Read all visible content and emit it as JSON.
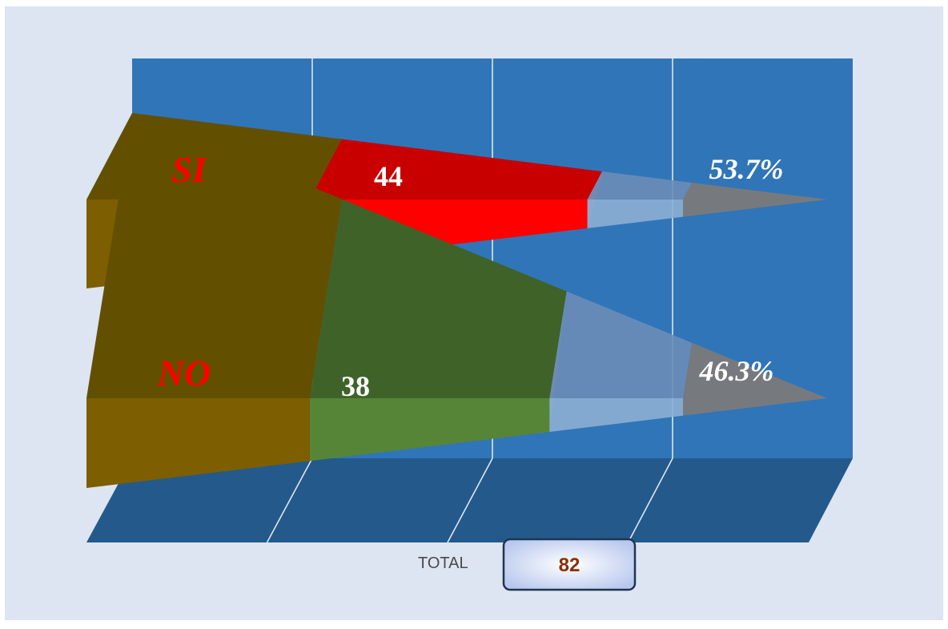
{
  "chart_data": {
    "type": "bar",
    "orientation": "horizontal-3d-cone",
    "categories": [
      "SI",
      "NO"
    ],
    "values": [
      44,
      38
    ],
    "percentages": [
      "53.7%",
      "46.3%"
    ],
    "total": 82,
    "max": 82
  },
  "total_label": "TOTAL",
  "colors": {
    "page_bg": "#dde5f3",
    "back_wall": "#3075b8",
    "floor": "#235a8b",
    "gridline": "#dce6f2",
    "cat_label": "#ff0000",
    "cat_front": "#7d5e00",
    "cat_top": "#625000",
    "value_label": "#ffffff",
    "pct_label": "#ffffff",
    "remaining_front": "#8dafd3",
    "remaining_top": "#6b8db7",
    "tip": "#7a7a7a",
    "total_label": "#4a4a4a",
    "total_value": "#8b2f00",
    "total_box_border": "#1f3550",
    "series": [
      {
        "front": "#ff0000",
        "top": "#c80000",
        "side": "#e06a6a"
      },
      {
        "front": "#578537",
        "top": "#3f6229",
        "side": "#7e9966"
      }
    ]
  }
}
